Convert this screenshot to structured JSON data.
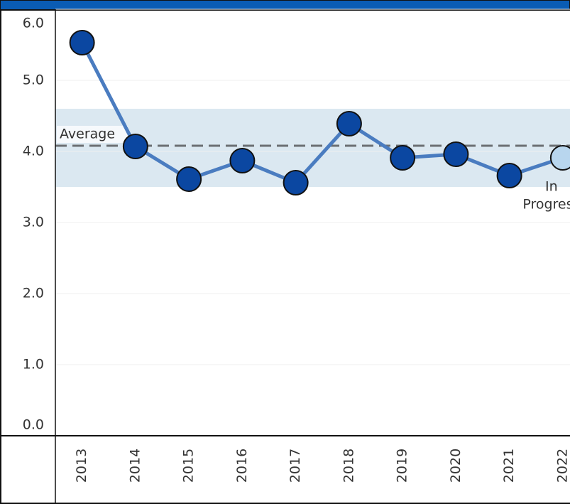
{
  "chart_data": {
    "type": "line",
    "categories": [
      "2013",
      "2014",
      "2015",
      "2016",
      "2017",
      "2018",
      "2019",
      "2020",
      "2021",
      "2022"
    ],
    "series": [
      {
        "color": "#4a7cc0",
        "values": [
          5.53,
          4.07,
          3.61,
          3.87,
          3.56,
          4.39,
          3.91,
          3.96,
          3.66,
          3.91
        ],
        "point_colors": [
          "#0b47a1",
          "#0b47a1",
          "#0b47a1",
          "#0b47a1",
          "#0b47a1",
          "#0b47a1",
          "#0b47a1",
          "#0b47a1",
          "#0b47a1",
          "#b8d6ee"
        ]
      }
    ],
    "ylim": [
      0,
      6
    ],
    "yticks": [
      {
        "value": 0,
        "label": "0.0"
      },
      {
        "value": 1,
        "label": "1.0"
      },
      {
        "value": 2,
        "label": "2.0"
      },
      {
        "value": 3,
        "label": "3.0"
      },
      {
        "value": 4,
        "label": "4.0"
      },
      {
        "value": 5,
        "label": "5.0"
      },
      {
        "value": 6,
        "label": "6.0"
      }
    ],
    "grid": true,
    "reference_band": {
      "from": 3.5,
      "to": 4.6,
      "color": "#dbe8f1"
    },
    "average": {
      "label": "Average",
      "value": 4.08
    },
    "in_progress_label": [
      "In",
      "Progress"
    ]
  }
}
